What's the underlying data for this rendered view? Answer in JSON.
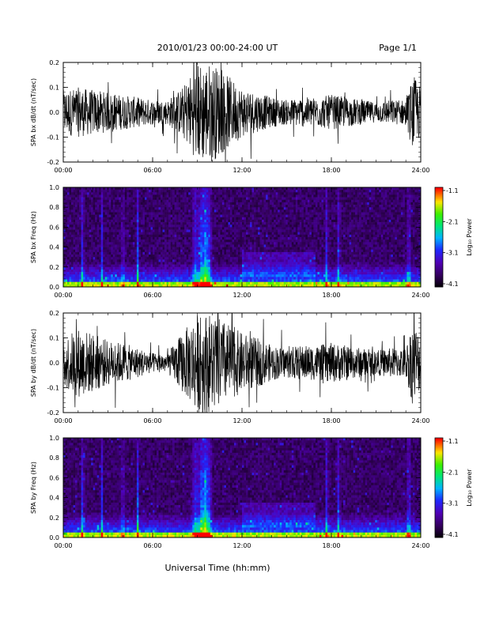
{
  "header": {
    "title": "2010/01/23  00:00-24:00 UT",
    "page": "Page 1/1"
  },
  "xaxis": {
    "label": "Universal Time (hh:mm)",
    "tick_labels": [
      "00:00",
      "06:00",
      "12:00",
      "18:00",
      "24:00"
    ]
  },
  "colorbar": {
    "label": "Log₁₀ Power",
    "tick_labels": [
      "-1.1",
      "-2.1",
      "-3.1",
      "-4.1"
    ]
  },
  "chart_data": [
    {
      "type": "line",
      "ylabel": "SPA bx dB/dt (nT/sec)",
      "xlim": [
        0,
        24
      ],
      "ylim": [
        -0.2,
        0.2
      ],
      "ytick_labels": [
        "0.2",
        "0.1",
        "0.0",
        "-0.1",
        "-0.2"
      ],
      "series": [
        {
          "x": [
            0,
            1,
            2,
            3,
            4,
            5,
            6,
            7,
            8,
            9,
            9.5,
            10,
            11,
            12,
            13,
            14,
            15,
            16,
            17,
            18,
            19,
            20,
            21,
            22,
            23,
            23.5,
            24
          ],
          "y_amplitude": [
            0.09,
            0.1,
            0.09,
            0.08,
            0.07,
            0.06,
            0.05,
            0.05,
            0.1,
            0.2,
            0.2,
            0.2,
            0.15,
            0.1,
            0.08,
            0.06,
            0.05,
            0.06,
            0.06,
            0.07,
            0.06,
            0.05,
            0.04,
            0.05,
            0.05,
            0.15,
            0.1
          ]
        }
      ]
    },
    {
      "type": "heatmap",
      "ylabel": "SPA bx Freq (Hz)",
      "xlim": [
        0,
        24
      ],
      "ylim": [
        0,
        1.0
      ],
      "ytick_labels": [
        "1.0",
        "0.8",
        "0.6",
        "0.4",
        "0.2",
        "0.0"
      ],
      "zlim": [
        -4.1,
        -1.1
      ],
      "bright_times": [
        1.3,
        2.6,
        4.0,
        5.0,
        8.9,
        9.3,
        9.5,
        9.7,
        17.7,
        18.5,
        23.2
      ],
      "bright_level": [
        0.6,
        0.45,
        0.4,
        0.55,
        0.5,
        0.7,
        0.9,
        0.7,
        0.6,
        0.55,
        0.6
      ]
    },
    {
      "type": "line",
      "ylabel": "SPA by dB/dt (nT/sec)",
      "xlim": [
        0,
        24
      ],
      "ylim": [
        -0.2,
        0.2
      ],
      "ytick_labels": [
        "0.2",
        "0.1",
        "0.0",
        "-0.1",
        "-0.2"
      ],
      "series": [
        {
          "x": [
            0,
            1,
            2,
            3,
            4,
            5,
            6,
            7,
            8,
            9,
            9.5,
            10,
            11,
            12,
            13,
            14,
            15,
            16,
            17,
            18,
            19,
            20,
            21,
            22,
            23,
            23.5,
            24
          ],
          "y_amplitude": [
            0.1,
            0.14,
            0.12,
            0.09,
            0.08,
            0.06,
            0.04,
            0.04,
            0.12,
            0.2,
            0.2,
            0.2,
            0.16,
            0.12,
            0.1,
            0.07,
            0.06,
            0.07,
            0.07,
            0.08,
            0.07,
            0.06,
            0.05,
            0.06,
            0.06,
            0.18,
            0.1
          ]
        }
      ]
    },
    {
      "type": "heatmap",
      "ylabel": "SPA by Freq (Hz)",
      "xlim": [
        0,
        24
      ],
      "ylim": [
        0,
        1.0
      ],
      "ytick_labels": [
        "1.0",
        "0.8",
        "0.6",
        "0.4",
        "0.2",
        "0.0"
      ],
      "zlim": [
        -4.1,
        -1.1
      ],
      "bright_times": [
        1.3,
        2.6,
        4.0,
        5.0,
        8.9,
        9.3,
        9.5,
        9.7,
        17.7,
        18.5,
        23.2
      ],
      "bright_level": [
        0.65,
        0.5,
        0.45,
        0.6,
        0.55,
        0.75,
        0.95,
        0.75,
        0.65,
        0.6,
        0.65
      ]
    }
  ],
  "colors": {
    "trace": "#000000",
    "background": "#ffffff",
    "axis": "#000000",
    "spectrogram_floor": "#000000"
  }
}
